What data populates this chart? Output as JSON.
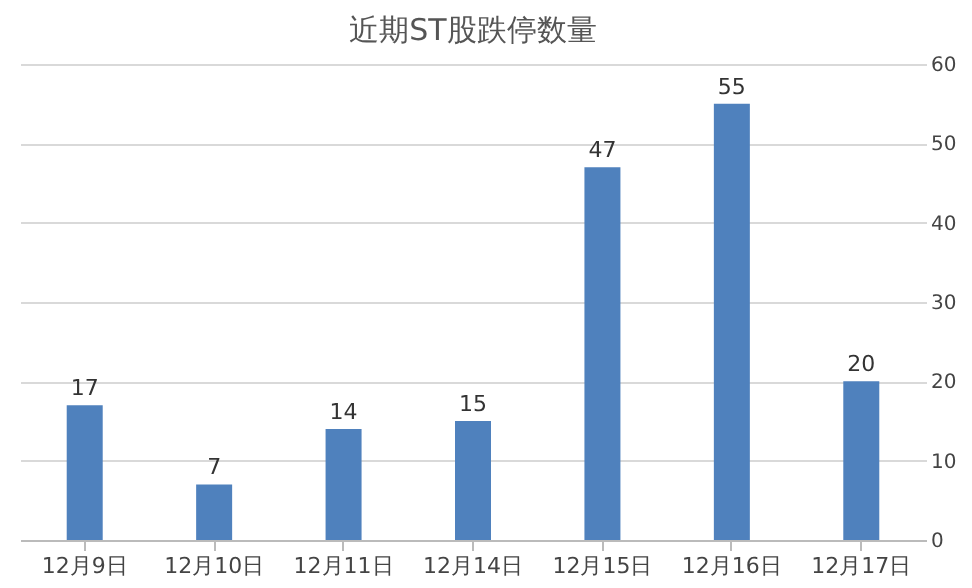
{
  "chart_data": {
    "type": "bar",
    "title": "近期ST股跌停数量",
    "categories": [
      "12月9日",
      "12月10日",
      "12月11日",
      "12月14日",
      "12月15日",
      "12月16日",
      "12月17日"
    ],
    "values": [
      17,
      7,
      14,
      15,
      47,
      55,
      20
    ],
    "color": "#4f81bd",
    "ylim": [
      0,
      60
    ],
    "yticks": [
      0,
      10,
      20,
      30,
      40,
      50,
      60
    ],
    "grid": "y",
    "data_labels": true
  }
}
